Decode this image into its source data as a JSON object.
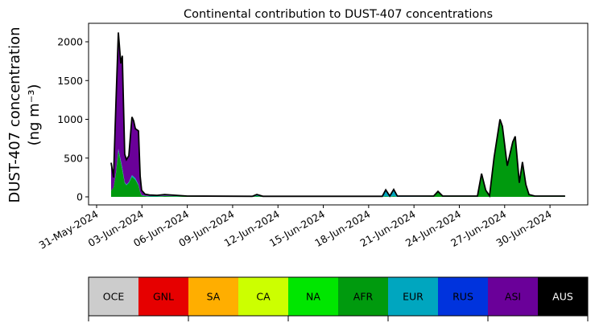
{
  "chart_data": {
    "type": "area",
    "stacked": true,
    "title": "Continental contribution to DUST-407 concentrations",
    "ylabel_line1": "DUST-407 concentration",
    "ylabel_line2": "(ng m⁻³)",
    "xlabel": "",
    "x_unit": "days since 31-May-2024 00:00",
    "xlim": [
      -0.5,
      32.5
    ],
    "ylim": [
      -110,
      2240
    ],
    "yticks": [
      0,
      500,
      1000,
      1500,
      2000
    ],
    "xticks": [
      0,
      3,
      6,
      9,
      12,
      15,
      18,
      21,
      24,
      27,
      30
    ],
    "xtick_labels": [
      "31-May-2024",
      "03-Jun-2024",
      "06-Jun-2024",
      "09-Jun-2024",
      "12-Jun-2024",
      "15-Jun-2024",
      "18-Jun-2024",
      "21-Jun-2024",
      "24-Jun-2024",
      "27-Jun-2024",
      "30-Jun-2024"
    ],
    "x": [
      0.96,
      1.12,
      1.28,
      1.44,
      1.6,
      1.7,
      1.86,
      1.97,
      2.13,
      2.34,
      2.45,
      2.56,
      2.77,
      2.88,
      2.98,
      3.2,
      3.5,
      4.0,
      4.5,
      6,
      10.3,
      10.6,
      11,
      18.9,
      19.13,
      19.4,
      19.66,
      19.9,
      22.3,
      22.59,
      22.9,
      25.2,
      25.47,
      25.75,
      26.0,
      26.3,
      26.69,
      26.85,
      27.17,
      27.54,
      27.7,
      27.97,
      28.18,
      28.4,
      28.61,
      29,
      31.0
    ],
    "series": [
      {
        "name": "AFR",
        "color": "#009a0e",
        "values": [
          80,
          120,
          300,
          600,
          450,
          350,
          180,
          150,
          180,
          260,
          240,
          220,
          150,
          60,
          20,
          10,
          5,
          5,
          10,
          5,
          3,
          10,
          3,
          0,
          10,
          0,
          10,
          0,
          5,
          60,
          5,
          5,
          290,
          80,
          10,
          500,
          990,
          900,
          390,
          700,
          770,
          170,
          440,
          150,
          25,
          5,
          5
        ]
      },
      {
        "name": "EUR",
        "color": "#00a6bf",
        "values": [
          0,
          0,
          10,
          20,
          20,
          20,
          10,
          10,
          10,
          20,
          20,
          20,
          10,
          5,
          5,
          5,
          5,
          5,
          5,
          2,
          2,
          15,
          2,
          5,
          75,
          8,
          80,
          8,
          5,
          10,
          5,
          5,
          10,
          5,
          5,
          10,
          10,
          10,
          10,
          10,
          10,
          10,
          10,
          10,
          5,
          5,
          5
        ]
      },
      {
        "name": "ASI",
        "color": "#6a0099",
        "values": [
          360,
          130,
          900,
          1500,
          1250,
          1450,
          360,
          320,
          340,
          750,
          720,
          640,
          690,
          200,
          60,
          20,
          15,
          10,
          15,
          3,
          2,
          5,
          2,
          2,
          5,
          2,
          5,
          2,
          0,
          0,
          0,
          0,
          0,
          0,
          0,
          0,
          0,
          0,
          0,
          0,
          0,
          0,
          0,
          0,
          0,
          0,
          0
        ]
      }
    ],
    "total_line_color": "#000000",
    "legend": {
      "placement": "bottom colorbar",
      "entries": [
        {
          "label": "OCE",
          "color": "#cccccc",
          "text_color": "#000000"
        },
        {
          "label": "GNL",
          "color": "#e60000",
          "text_color": "#000000"
        },
        {
          "label": "SA",
          "color": "#ffae00",
          "text_color": "#000000"
        },
        {
          "label": "CA",
          "color": "#ccff00",
          "text_color": "#000000"
        },
        {
          "label": "NA",
          "color": "#00e600",
          "text_color": "#000000"
        },
        {
          "label": "AFR",
          "color": "#009a0e",
          "text_color": "#000000"
        },
        {
          "label": "EUR",
          "color": "#00a6bf",
          "text_color": "#000000"
        },
        {
          "label": "RUS",
          "color": "#0033dd",
          "text_color": "#000000"
        },
        {
          "label": "ASI",
          "color": "#6a0099",
          "text_color": "#000000"
        },
        {
          "label": "AUS",
          "color": "#000000",
          "text_color": "#ffffff"
        }
      ]
    }
  }
}
